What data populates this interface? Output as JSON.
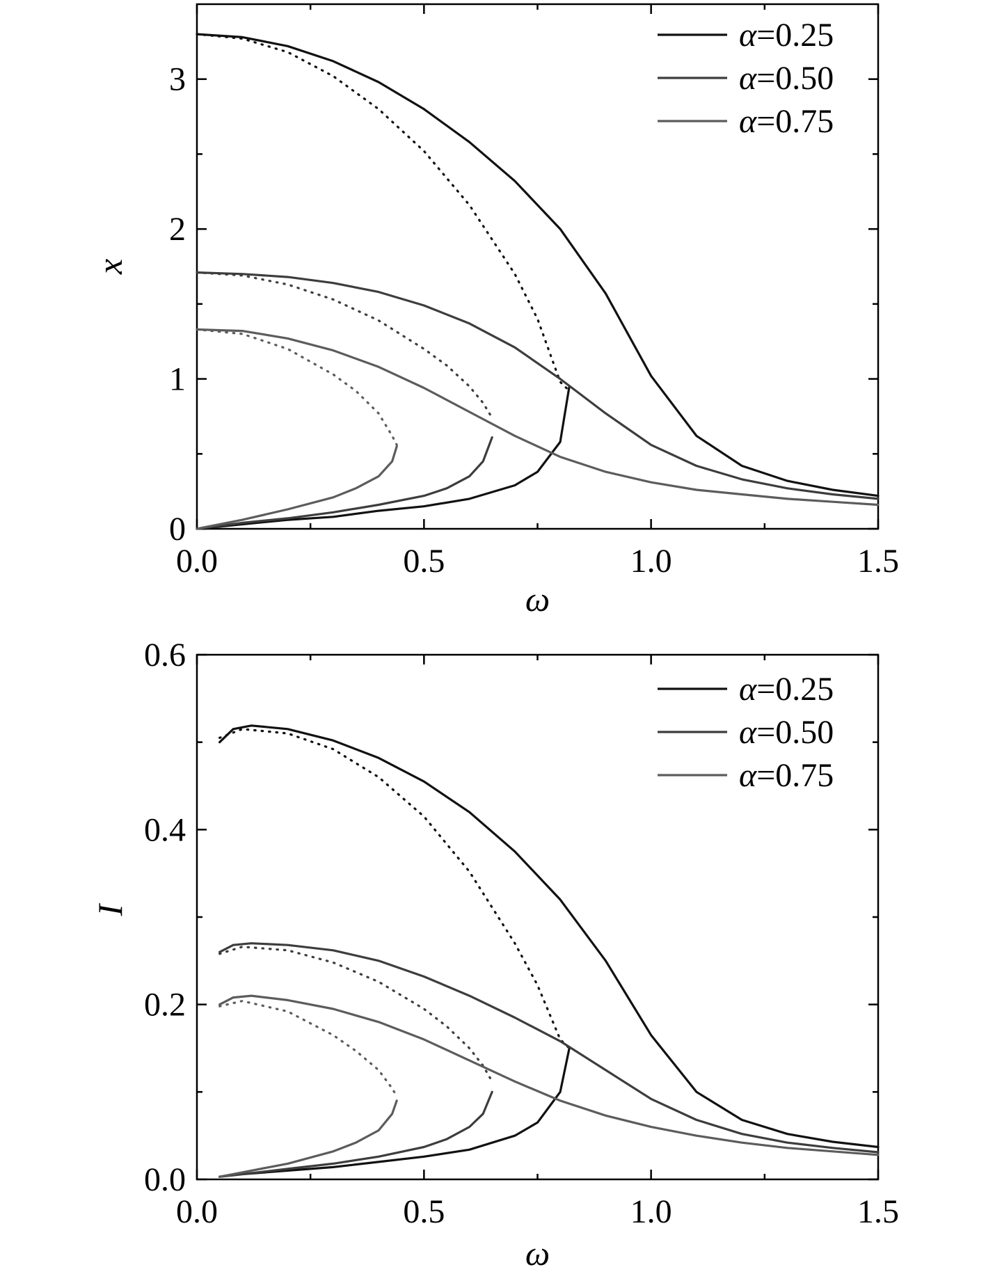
{
  "chart_data": [
    {
      "type": "line",
      "title": "",
      "xlabel": "ω",
      "ylabel": "x",
      "xlim": [
        0,
        1.5
      ],
      "ylim": [
        0,
        3.5
      ],
      "xticks": [
        {
          "value": 0.0,
          "label": "0.0"
        },
        {
          "value": 0.5,
          "label": "0.5"
        },
        {
          "value": 1.0,
          "label": "1.0"
        },
        {
          "value": 1.5,
          "label": "1.5"
        }
      ],
      "xminor": [
        0.25,
        0.75,
        1.25
      ],
      "yticks": [
        {
          "value": 0,
          "label": "0"
        },
        {
          "value": 1,
          "label": "1"
        },
        {
          "value": 2,
          "label": "2"
        },
        {
          "value": 3,
          "label": "3"
        }
      ],
      "yminor": [
        0.5,
        1.5,
        2.5
      ],
      "grid": false,
      "legend": "top-right",
      "series": [
        {
          "name": "α=0.25",
          "color": "#111111",
          "style": "solid",
          "x": [
            0.0,
            0.1,
            0.2,
            0.3,
            0.4,
            0.5,
            0.6,
            0.7,
            0.8,
            0.9,
            1.0,
            1.1,
            1.2,
            1.3,
            1.4,
            1.5
          ],
          "y": [
            3.3,
            3.28,
            3.22,
            3.12,
            2.98,
            2.8,
            2.58,
            2.32,
            2.0,
            1.57,
            1.02,
            0.62,
            0.42,
            0.32,
            0.26,
            0.22
          ]
        },
        {
          "name": "α=0.25",
          "color": "#111111",
          "style": "dotted",
          "x": [
            0.0,
            0.1,
            0.2,
            0.3,
            0.4,
            0.5,
            0.6,
            0.7,
            0.75,
            0.8,
            0.82
          ],
          "y": [
            3.3,
            3.27,
            3.18,
            3.02,
            2.8,
            2.52,
            2.16,
            1.7,
            1.4,
            0.98,
            0.92
          ]
        },
        {
          "name": "α=0.25",
          "color": "#111111",
          "style": "solid",
          "x": [
            0.0,
            0.1,
            0.2,
            0.3,
            0.4,
            0.5,
            0.6,
            0.7,
            0.75,
            0.8,
            0.82
          ],
          "y": [
            0.0,
            0.03,
            0.06,
            0.08,
            0.12,
            0.15,
            0.2,
            0.29,
            0.38,
            0.58,
            0.95
          ]
        },
        {
          "name": "α=0.50",
          "color": "#3d3d3d",
          "style": "solid",
          "x": [
            0.0,
            0.1,
            0.2,
            0.3,
            0.4,
            0.5,
            0.6,
            0.7,
            0.8,
            0.9,
            1.0,
            1.1,
            1.2,
            1.3,
            1.4,
            1.5
          ],
          "y": [
            1.71,
            1.7,
            1.68,
            1.64,
            1.58,
            1.49,
            1.37,
            1.21,
            1.0,
            0.77,
            0.56,
            0.42,
            0.33,
            0.27,
            0.23,
            0.2
          ]
        },
        {
          "name": "α=0.50",
          "color": "#3d3d3d",
          "style": "dotted",
          "x": [
            0.0,
            0.1,
            0.2,
            0.3,
            0.4,
            0.5,
            0.55,
            0.6,
            0.63,
            0.65
          ],
          "y": [
            1.71,
            1.69,
            1.63,
            1.53,
            1.39,
            1.2,
            1.09,
            0.95,
            0.84,
            0.74
          ]
        },
        {
          "name": "α=0.50",
          "color": "#3d3d3d",
          "style": "solid",
          "x": [
            0.0,
            0.1,
            0.2,
            0.3,
            0.4,
            0.5,
            0.55,
            0.6,
            0.63,
            0.65
          ],
          "y": [
            0.0,
            0.04,
            0.07,
            0.11,
            0.16,
            0.22,
            0.27,
            0.35,
            0.45,
            0.61
          ]
        },
        {
          "name": "α=0.75",
          "color": "#5c5c5c",
          "style": "solid",
          "x": [
            0.0,
            0.1,
            0.2,
            0.3,
            0.4,
            0.5,
            0.6,
            0.7,
            0.8,
            0.9,
            1.0,
            1.1,
            1.2,
            1.3,
            1.4,
            1.5
          ],
          "y": [
            1.33,
            1.32,
            1.27,
            1.19,
            1.08,
            0.94,
            0.78,
            0.62,
            0.48,
            0.38,
            0.31,
            0.26,
            0.23,
            0.2,
            0.18,
            0.16
          ]
        },
        {
          "name": "α=0.75",
          "color": "#5c5c5c",
          "style": "dotted",
          "x": [
            0.0,
            0.1,
            0.2,
            0.3,
            0.35,
            0.4,
            0.43,
            0.44
          ],
          "y": [
            1.33,
            1.3,
            1.2,
            1.03,
            0.92,
            0.77,
            0.62,
            0.56
          ]
        },
        {
          "name": "α=0.75",
          "color": "#5c5c5c",
          "style": "solid",
          "x": [
            0.0,
            0.1,
            0.2,
            0.3,
            0.35,
            0.4,
            0.43,
            0.44
          ],
          "y": [
            0.0,
            0.06,
            0.13,
            0.21,
            0.27,
            0.35,
            0.45,
            0.55
          ]
        }
      ]
    },
    {
      "type": "line",
      "title": "",
      "xlabel": "ω",
      "ylabel": "I",
      "xlim": [
        0,
        1.5
      ],
      "ylim": [
        0,
        0.6
      ],
      "xticks": [
        {
          "value": 0.0,
          "label": "0.0"
        },
        {
          "value": 0.5,
          "label": "0.5"
        },
        {
          "value": 1.0,
          "label": "1.0"
        },
        {
          "value": 1.5,
          "label": "1.5"
        }
      ],
      "xminor": [
        0.25,
        0.75,
        1.25
      ],
      "yticks": [
        {
          "value": 0.0,
          "label": "0.0"
        },
        {
          "value": 0.2,
          "label": "0.2"
        },
        {
          "value": 0.4,
          "label": "0.4"
        },
        {
          "value": 0.6,
          "label": "0.6"
        }
      ],
      "yminor": [
        0.1,
        0.3,
        0.5
      ],
      "grid": false,
      "legend": "top-right",
      "series": [
        {
          "name": "α=0.25",
          "color": "#111111",
          "style": "solid",
          "x": [
            0.05,
            0.08,
            0.12,
            0.2,
            0.3,
            0.4,
            0.5,
            0.6,
            0.7,
            0.8,
            0.9,
            1.0,
            1.1,
            1.2,
            1.3,
            1.4,
            1.5
          ],
          "y": [
            0.5,
            0.515,
            0.519,
            0.515,
            0.502,
            0.482,
            0.455,
            0.42,
            0.375,
            0.32,
            0.25,
            0.165,
            0.1,
            0.068,
            0.052,
            0.043,
            0.037
          ]
        },
        {
          "name": "α=0.25",
          "color": "#111111",
          "style": "dotted",
          "x": [
            0.05,
            0.1,
            0.2,
            0.3,
            0.4,
            0.5,
            0.6,
            0.7,
            0.75,
            0.8,
            0.82
          ],
          "y": [
            0.505,
            0.515,
            0.51,
            0.492,
            0.46,
            0.415,
            0.352,
            0.27,
            0.222,
            0.16,
            0.15
          ]
        },
        {
          "name": "α=0.25",
          "color": "#111111",
          "style": "solid",
          "x": [
            0.05,
            0.1,
            0.2,
            0.3,
            0.4,
            0.5,
            0.6,
            0.7,
            0.75,
            0.8,
            0.82
          ],
          "y": [
            0.003,
            0.006,
            0.01,
            0.014,
            0.02,
            0.026,
            0.034,
            0.05,
            0.065,
            0.1,
            0.15
          ]
        },
        {
          "name": "α=0.50",
          "color": "#3d3d3d",
          "style": "solid",
          "x": [
            0.05,
            0.08,
            0.12,
            0.2,
            0.3,
            0.4,
            0.5,
            0.6,
            0.7,
            0.8,
            0.9,
            1.0,
            1.1,
            1.2,
            1.3,
            1.4,
            1.5
          ],
          "y": [
            0.26,
            0.268,
            0.27,
            0.268,
            0.262,
            0.25,
            0.232,
            0.21,
            0.185,
            0.158,
            0.125,
            0.092,
            0.068,
            0.052,
            0.042,
            0.036,
            0.031
          ]
        },
        {
          "name": "α=0.50",
          "color": "#3d3d3d",
          "style": "dotted",
          "x": [
            0.05,
            0.1,
            0.2,
            0.3,
            0.4,
            0.5,
            0.55,
            0.6,
            0.63,
            0.65
          ],
          "y": [
            0.258,
            0.266,
            0.262,
            0.248,
            0.226,
            0.195,
            0.175,
            0.15,
            0.13,
            0.112
          ]
        },
        {
          "name": "α=0.50",
          "color": "#3d3d3d",
          "style": "solid",
          "x": [
            0.05,
            0.1,
            0.2,
            0.3,
            0.4,
            0.5,
            0.55,
            0.6,
            0.63,
            0.65
          ],
          "y": [
            0.003,
            0.006,
            0.012,
            0.018,
            0.026,
            0.037,
            0.046,
            0.06,
            0.075,
            0.1
          ]
        },
        {
          "name": "α=0.75",
          "color": "#5c5c5c",
          "style": "solid",
          "x": [
            0.05,
            0.08,
            0.12,
            0.2,
            0.3,
            0.4,
            0.5,
            0.6,
            0.7,
            0.8,
            0.9,
            1.0,
            1.1,
            1.2,
            1.3,
            1.4,
            1.5
          ],
          "y": [
            0.2,
            0.208,
            0.21,
            0.205,
            0.195,
            0.18,
            0.16,
            0.136,
            0.112,
            0.09,
            0.073,
            0.06,
            0.05,
            0.042,
            0.036,
            0.032,
            0.028
          ]
        },
        {
          "name": "α=0.75",
          "color": "#5c5c5c",
          "style": "dotted",
          "x": [
            0.05,
            0.1,
            0.2,
            0.3,
            0.35,
            0.4,
            0.43,
            0.44
          ],
          "y": [
            0.198,
            0.204,
            0.192,
            0.165,
            0.147,
            0.125,
            0.104,
            0.095
          ]
        },
        {
          "name": "α=0.75",
          "color": "#5c5c5c",
          "style": "solid",
          "x": [
            0.05,
            0.1,
            0.2,
            0.3,
            0.35,
            0.4,
            0.43,
            0.44
          ],
          "y": [
            0.003,
            0.008,
            0.018,
            0.032,
            0.042,
            0.056,
            0.075,
            0.09
          ]
        }
      ],
      "legend_entries": []
    }
  ],
  "legend_entries": [
    {
      "greek": "α",
      "text": "=0.25",
      "color": "#111111"
    },
    {
      "greek": "α",
      "text": "=0.50",
      "color": "#3d3d3d"
    },
    {
      "greek": "α",
      "text": "=0.75",
      "color": "#5c5c5c"
    }
  ]
}
